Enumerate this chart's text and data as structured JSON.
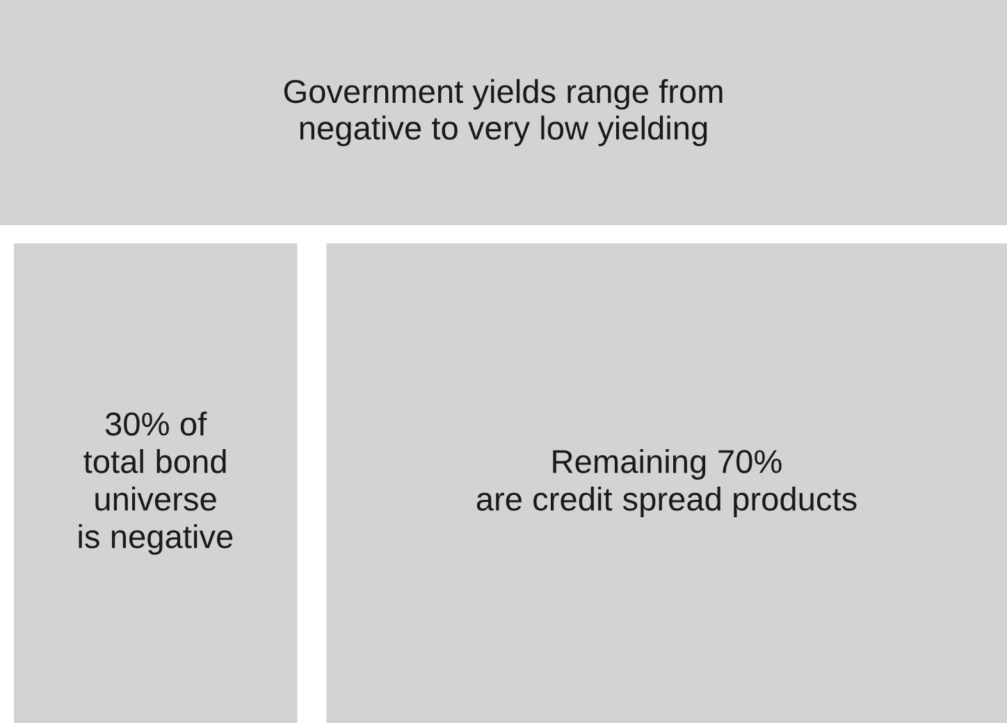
{
  "chart_data": {
    "type": "other",
    "title": "Government yields range from\nnegative to very low yielding",
    "categories": [
      " of\ntotal bond\nuniverse\nis negative",
      "Remaining \nare credit spread products"
    ],
    "values": [
      30,
      70
    ],
    "value_labels": [
      "30%",
      "70%"
    ],
    "colors": [
      "#d3d3d3",
      "#d3d3d3"
    ]
  }
}
